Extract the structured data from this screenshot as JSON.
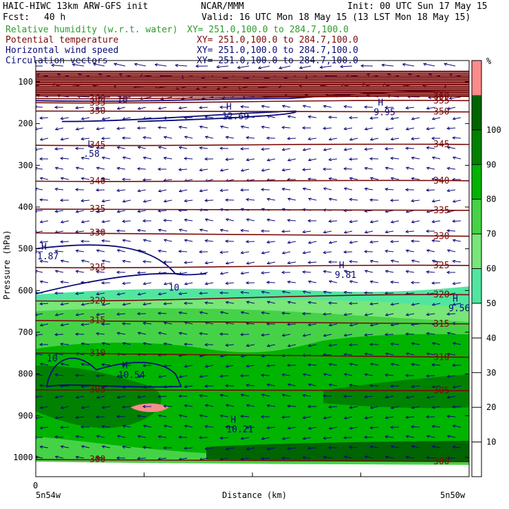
{
  "header": {
    "model": "HAIC-HIWC 13km ARW-GFS init",
    "org": "NCAR/MMM",
    "init": "Init: 00 UTC Sun 17 May 15",
    "fcst_label": "Fcst:",
    "fcst_value": "40 h",
    "valid": "Valid: 16 UTC Mon 18 May 15 (13 LST Mon 18 May 15)"
  },
  "fields": [
    {
      "name": "Relative humidity (w.r.t. water)",
      "xy": "XY= 251.0,100.0 to 284.7,100.0",
      "color": "#2a9d2a"
    },
    {
      "name": "Potential temperature",
      "xy": "XY= 251.0,100.0 to 284.7,100.0",
      "color": "#7a0a0a"
    },
    {
      "name": "Horizontal wind speed",
      "xy": "XY= 251.0,100.0 to 284.7,100.0",
      "color": "#0a0a7a"
    },
    {
      "name": "Circulation vectors",
      "xy": "XY= 251.0,100.0 to 284.7,100.0",
      "color": "#0a0a7a"
    }
  ],
  "axes": {
    "ylabel": "Pressure (hPa)",
    "xlabel": "Distance (km)",
    "x_origin": "0",
    "x_left_label": "5n54w",
    "x_right_label": "5n50w",
    "y_ticks": [
      100,
      200,
      300,
      400,
      500,
      600,
      700,
      800,
      900,
      1000
    ]
  },
  "colorbar": {
    "unit": "%",
    "levels": [
      10,
      20,
      30,
      40,
      50,
      60,
      70,
      80,
      90,
      100
    ],
    "colors": [
      "#ffffff",
      "#ffffff",
      "#ffffff",
      "#ffffff",
      "#ffffff",
      "#50e6a0",
      "#78e678",
      "#46d246",
      "#00b400",
      "#008200",
      "#006400",
      "#fa8c8c"
    ]
  },
  "chart_data": {
    "type": "heatmap",
    "ylabel": "Pressure (hPa)",
    "xlabel": "Distance (km)",
    "ylim": [
      1050,
      70
    ],
    "theta_contours": [
      {
        "value": 360,
        "label": "360",
        "p_left": 140,
        "p_right": 135
      },
      {
        "value": 355,
        "label": "355",
        "p_left": 150,
        "p_right": 145
      },
      {
        "value": 350,
        "label": "350",
        "p_left": 170,
        "p_right": 172
      },
      {
        "value": 345,
        "label": "345",
        "p_left": 252,
        "p_right": 250
      },
      {
        "value": 340,
        "label": "340",
        "p_left": 338,
        "p_right": 337
      },
      {
        "value": 335,
        "label": "335",
        "p_left": 405,
        "p_right": 408
      },
      {
        "value": 330,
        "label": "330",
        "p_left": 462,
        "p_right": 470
      },
      {
        "value": 325,
        "label": "325",
        "p_left": 545,
        "p_right": 540
      },
      {
        "value": 320,
        "label": "320",
        "p_left": 625,
        "p_right": 610
      },
      {
        "value": 315,
        "label": "315",
        "p_left": 672,
        "p_right": 680
      },
      {
        "value": 310,
        "label": "310",
        "p_left": 750,
        "p_right": 760
      },
      {
        "value": 305,
        "label": "305",
        "p_left": 838,
        "p_right": 840
      },
      {
        "value": 300,
        "label": "300",
        "p_left": 1005,
        "p_right": 1010
      }
    ],
    "wind_maxima": [
      {
        "marker": "H",
        "value": "12.69",
        "x_frac": 0.43,
        "p": 190
      },
      {
        "marker": "H",
        "value": "9.95",
        "x_frac": 0.78,
        "p": 180
      },
      {
        "marker": "L",
        "value": ".58",
        "x_frac": 0.11,
        "p": 280
      },
      {
        "marker": "H",
        "value": "1.87",
        "x_frac": 0.0,
        "p": 525
      },
      {
        "marker": "H",
        "value": "9.81",
        "x_frac": 0.69,
        "p": 570
      },
      {
        "marker": "H",
        "value": "9.56",
        "x_frac": 0.97,
        "p": 650
      },
      {
        "marker": "H",
        "value": "10.54",
        "x_frac": 0.19,
        "p": 810
      },
      {
        "marker": "H",
        "value": "10.21",
        "x_frac": 0.44,
        "p": 940
      }
    ],
    "wind_contours": [
      "10",
      "10",
      "10"
    ],
    "rh_levels": [
      50,
      60,
      70,
      80,
      90,
      100
    ]
  }
}
